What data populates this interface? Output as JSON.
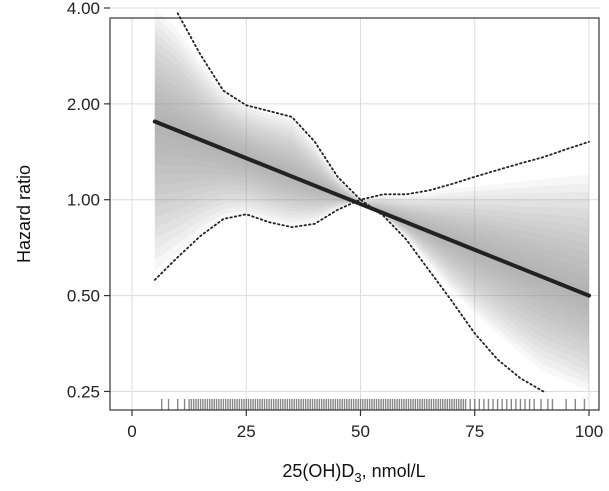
{
  "chart_data": {
    "type": "line",
    "title": "",
    "xlabel": {
      "main": "25(OH)D",
      "sub": "3",
      "rest": ", nmol/L"
    },
    "ylabel": "Hazard ratio",
    "xlim": [
      0,
      100
    ],
    "ylim": [
      0.235,
      4.0
    ],
    "y_scale": "log",
    "x_ticks": [
      0,
      25,
      50,
      75,
      100
    ],
    "x_tick_labels": [
      "0",
      "25",
      "50",
      "75",
      "100"
    ],
    "y_ticks": [
      0.25,
      0.5,
      1.0,
      2.0,
      4.0
    ],
    "y_tick_labels": [
      "0.25",
      "0.50",
      "1.00",
      "2.00",
      "4.00"
    ],
    "grid": true,
    "series": [
      {
        "style": "solid-thick",
        "color": "#222222",
        "x": [
          5,
          100
        ],
        "y": [
          1.76,
          0.5
        ]
      },
      {
        "style": "dotted",
        "color": "#222222",
        "x": [
          10,
          15,
          20,
          25,
          30,
          35,
          40,
          45,
          50,
          55,
          60,
          65,
          70,
          75,
          80,
          85,
          90,
          95,
          100
        ],
        "y": [
          3.85,
          2.85,
          2.2,
          1.98,
          1.9,
          1.82,
          1.52,
          1.18,
          1.0,
          1.04,
          1.04,
          1.07,
          1.12,
          1.18,
          1.24,
          1.3,
          1.36,
          1.44,
          1.52
        ]
      },
      {
        "style": "dotted",
        "color": "#222222",
        "x": [
          5,
          10,
          15,
          20,
          25,
          30,
          35,
          40,
          45,
          50,
          55,
          60,
          65,
          70,
          75,
          80,
          85,
          90
        ],
        "y": [
          0.56,
          0.66,
          0.77,
          0.87,
          0.9,
          0.85,
          0.82,
          0.84,
          0.93,
          1.0,
          0.89,
          0.75,
          0.6,
          0.48,
          0.38,
          0.315,
          0.275,
          0.25
        ]
      }
    ],
    "uncertainty_band": {
      "color": "#9a9a9a",
      "x": [
        5,
        10,
        15,
        20,
        25,
        30,
        35,
        40,
        45,
        50,
        55,
        60,
        65,
        70,
        75,
        80,
        85,
        90,
        95,
        100
      ],
      "upper": [
        4.0,
        3.4,
        2.7,
        2.2,
        2.0,
        1.9,
        1.82,
        1.5,
        1.18,
        1.0,
        1.03,
        1.03,
        1.05,
        1.08,
        1.1,
        1.12,
        1.14,
        1.16,
        1.18,
        1.2
      ],
      "lower": [
        0.6,
        0.68,
        0.78,
        0.87,
        0.9,
        0.86,
        0.83,
        0.85,
        0.93,
        1.0,
        0.89,
        0.76,
        0.63,
        0.52,
        0.44,
        0.38,
        0.33,
        0.29,
        0.27,
        0.25
      ]
    },
    "rug": {
      "color": "#555555",
      "x": [
        6.5,
        8,
        10,
        11.5,
        12.5,
        13,
        13.5,
        14,
        14.5,
        15,
        15.5,
        16,
        16.5,
        17,
        17.5,
        18,
        18.5,
        19,
        19.5,
        20,
        20.5,
        21,
        21.5,
        22,
        22.5,
        23,
        23.5,
        24,
        24.5,
        25,
        25.5,
        26,
        26.5,
        27,
        27.5,
        28,
        28.5,
        29,
        29.5,
        30,
        30.5,
        31,
        31.5,
        32,
        32.5,
        33,
        33.5,
        34,
        34.5,
        35,
        35.5,
        36,
        36.5,
        37,
        37.5,
        38,
        38.5,
        39,
        39.5,
        40,
        40.5,
        41,
        41.5,
        42,
        42.5,
        43,
        43.5,
        44,
        44.5,
        45,
        45.5,
        46,
        46.5,
        47,
        47.5,
        48,
        48.5,
        49,
        49.5,
        50,
        50.5,
        51,
        51.5,
        52,
        52.5,
        53,
        53.5,
        54,
        54.5,
        55,
        55.5,
        56,
        56.5,
        57,
        57.5,
        58,
        58.5,
        59,
        59.5,
        60,
        60.5,
        61,
        61.5,
        62,
        62.5,
        63,
        63.5,
        64,
        64.5,
        65,
        65.5,
        66,
        66.5,
        67,
        67.5,
        68,
        68.5,
        69,
        69.5,
        70,
        70.5,
        71,
        71.5,
        72,
        72.5,
        73,
        74,
        75,
        76,
        77,
        78,
        79,
        80,
        81,
        82,
        83,
        84,
        85,
        86,
        87,
        88,
        89.5,
        91,
        92,
        95,
        97,
        99
      ]
    }
  }
}
